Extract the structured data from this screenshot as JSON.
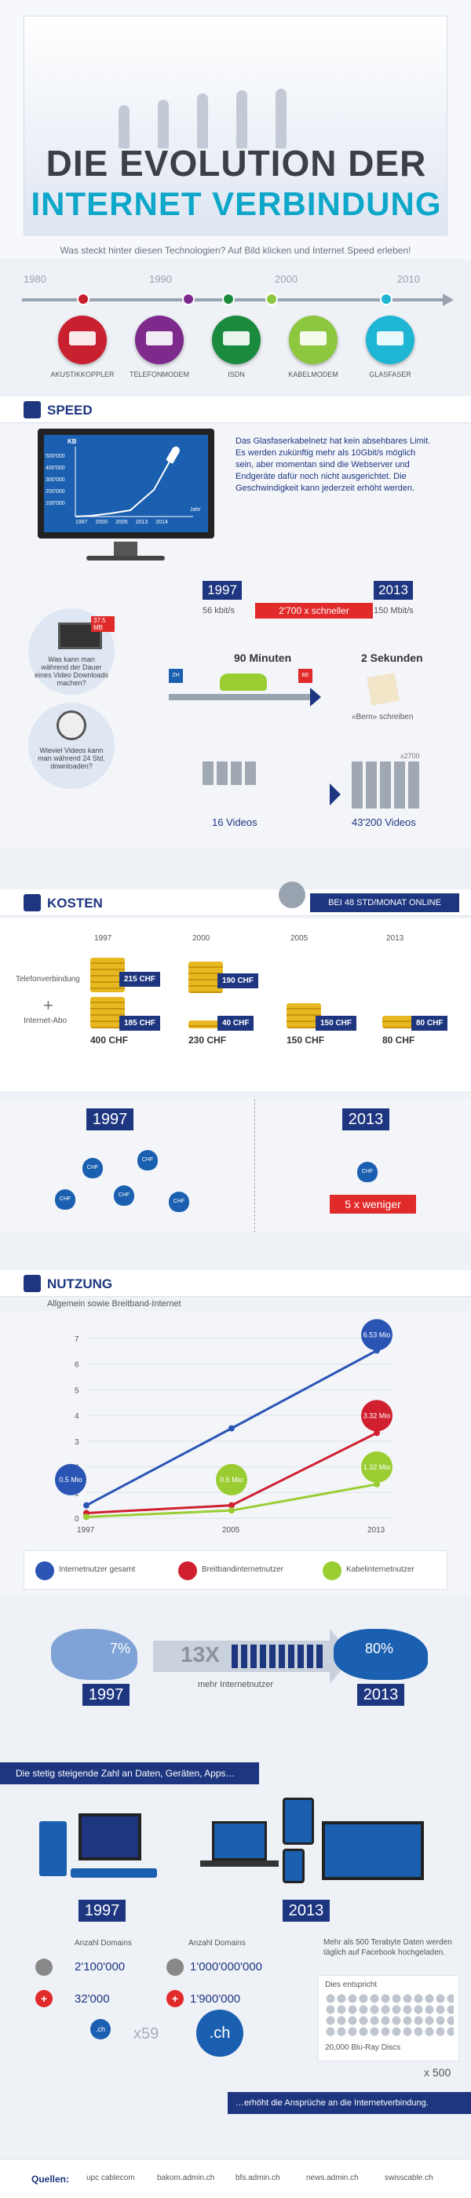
{
  "header": {
    "title_line1": "DIE EVOLUTION DER",
    "title_line2": "INTERNET VERBINDUNG",
    "subtitle": "Was steckt hinter diesen Technologien? Auf Bild klicken und Internet Speed erleben!"
  },
  "timeline": {
    "years": [
      "1980",
      "1990",
      "2000",
      "2010"
    ],
    "technologies": [
      {
        "label": "AKUSTIKKOPPLER",
        "color": "#c8202f"
      },
      {
        "label": "TELEFONMODEM",
        "color": "#7d2a8c"
      },
      {
        "label": "ISDN",
        "color": "#1a8a3c"
      },
      {
        "label": "KABELMODEM",
        "color": "#8dc63f"
      },
      {
        "label": "GLASFASER",
        "color": "#1fb6d4"
      }
    ]
  },
  "speed": {
    "title": "SPEED",
    "monitor": {
      "y_label": "KB",
      "y_ticks": [
        "500'000",
        "400'000",
        "300'000",
        "200'000",
        "100'000"
      ],
      "x_ticks": [
        "1997",
        "2000",
        "2005",
        "2013",
        "2014"
      ],
      "x_label": "Jahr"
    },
    "info": "Das Glasfaserkabelnetz hat kein absehbares Limit. Es werden zukünftig mehr als 10Gbit/s möglich sein, aber momentan sind die Webserver und Endgeräte dafür noch nicht ausgerichtet. Die Geschwindigkeit kann jederzeit erhöht werden.",
    "year_from": "1997",
    "year_to": "2013",
    "speed_from": "56 kbit/s",
    "speed_to": "150 Mbit/s",
    "faster": "2'700 x schneller",
    "video_size": "37.5 MB",
    "question1": "Was kann man während der Dauer eines Video Downloads machen?",
    "question2": "Wieviel Videos kann man während 24 Std. downloaden?",
    "minutes": "90 Minuten",
    "seconds": "2 Sekunden",
    "zh": "ZH",
    "be": "BE",
    "write": "«Bern» schreiben",
    "videos_from": "16 Videos",
    "videos_to": "43'200 Videos",
    "multiplier": "x2700"
  },
  "costs": {
    "title": "KOSTEN",
    "banner": "BEI 48 STD/MONAT ONLINE",
    "row_labels": [
      "Telefonverbindung",
      "Internet-Abo"
    ],
    "columns": [
      {
        "year": "1997",
        "phone": "215 CHF",
        "abo": "185 CHF",
        "total": "400 CHF"
      },
      {
        "year": "2000",
        "phone": "190 CHF",
        "abo": "40 CHF",
        "total": "230 CHF"
      },
      {
        "year": "2005",
        "phone": "",
        "abo": "150 CHF",
        "total": "150 CHF"
      },
      {
        "year": "2013",
        "phone": "",
        "abo": "80 CHF",
        "total": "80 CHF"
      }
    ],
    "compare_from": "1997",
    "compare_to": "2013",
    "bag_label": "CHF",
    "less": "5 x weniger"
  },
  "usage": {
    "title": "NUTZUNG",
    "subtitle": "Allgemein sowie Breitband-Internet",
    "y_ticks": [
      "7",
      "6",
      "5",
      "4",
      "3",
      "2",
      "1",
      "0"
    ],
    "x_ticks": [
      "1997",
      "2005",
      "2013"
    ],
    "labels": [
      "0.5 Mio",
      "0.5 Mio",
      "6.53 Mio",
      "3.32 Mio",
      "1.32 Mio"
    ],
    "legend": [
      "Internetnutzer gesamt",
      "Breitbandinternetnutzer",
      "Kabelinternetnutzer"
    ],
    "pct_from": "7%",
    "pct_to": "80%",
    "factor": "13X",
    "more": "mehr Internetnutzer",
    "year_from": "1997",
    "year_to": "2013"
  },
  "chart_data": {
    "type": "line",
    "x": [
      1997,
      2005,
      2013
    ],
    "series": [
      {
        "name": "Internetnutzer gesamt",
        "values": [
          0.5,
          3.5,
          6.53
        ],
        "color": "#2b55b5"
      },
      {
        "name": "Breitbandinternetnutzer",
        "values": [
          0.2,
          0.5,
          3.32
        ],
        "color": "#d0202f"
      },
      {
        "name": "Kabelinternetnutzer",
        "values": [
          0.05,
          0.3,
          1.32
        ],
        "color": "#9acd32"
      }
    ],
    "ylim": [
      0,
      7
    ]
  },
  "data": {
    "banner": "Die stetig steigende Zahl an Daten, Geräten, Apps…",
    "year_from": "1997",
    "year_to": "2013",
    "domains_label": "Anzahl Domains",
    "com_from": "2'100'000",
    "com_to": "1'000'000'000",
    "ch_from": "32'000",
    "ch_to": "1'900'000",
    "facebook": "Mehr als 500 Terabyte Daten werden täglich auf Facebook hochgeladen.",
    "equals": "Dies entspricht",
    "bluray": "20,000 Blu-Ray Discs",
    "x500": "x 500",
    "x59": "x59",
    "ch_small": ".ch",
    "ch_big": ".ch",
    "footer_note": "…erhöht die Ansprüche an die Internetverbindung."
  },
  "sources": {
    "label": "Quellen:",
    "items": [
      "upc cablecom",
      "bakom.admin.ch",
      "bfs.admin.ch",
      "news.admin.ch",
      "swisscable.ch"
    ]
  }
}
